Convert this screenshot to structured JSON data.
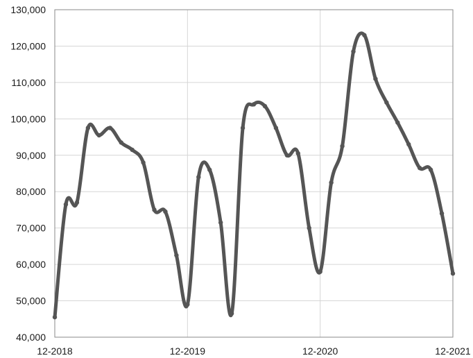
{
  "chart_data": {
    "type": "line",
    "title": "",
    "xlabel": "",
    "ylabel": "",
    "x_tick_labels": [
      "12-2018",
      "12-2019",
      "12-2020",
      "12-2021"
    ],
    "y_tick_labels": [
      "40,000",
      "50,000",
      "60,000",
      "70,000",
      "80,000",
      "90,000",
      "100,000",
      "110,000",
      "120,000",
      "130,000"
    ],
    "y_ticks": [
      40000,
      50000,
      60000,
      70000,
      80000,
      90000,
      100000,
      110000,
      120000,
      130000
    ],
    "ylim": [
      40000,
      130000
    ],
    "x_range": [
      "2018-12",
      "2021-12"
    ],
    "grid": true,
    "line_color": "#555555",
    "series": [
      {
        "name": "",
        "x": [
          "2018-12",
          "2019-01",
          "2019-02",
          "2019-03",
          "2019-04",
          "2019-05",
          "2019-06",
          "2019-07",
          "2019-08",
          "2019-09",
          "2019-10",
          "2019-11",
          "2019-12",
          "2020-01",
          "2020-02",
          "2020-03",
          "2020-04",
          "2020-05",
          "2020-06",
          "2020-07",
          "2020-08",
          "2020-09",
          "2020-10",
          "2020-11",
          "2020-12",
          "2021-01",
          "2021-02",
          "2021-03",
          "2021-04",
          "2021-05",
          "2021-06",
          "2021-07",
          "2021-08",
          "2021-09",
          "2021-10",
          "2021-11",
          "2021-12"
        ],
        "values": [
          45500,
          76500,
          77000,
          97500,
          95500,
          97500,
          93500,
          91500,
          88000,
          75000,
          74500,
          62500,
          49000,
          84000,
          86000,
          71500,
          46500,
          97500,
          104000,
          103500,
          97500,
          90000,
          90500,
          70000,
          58000,
          82500,
          92500,
          118500,
          123000,
          111000,
          104500,
          99000,
          93000,
          86500,
          86000,
          74000,
          57500
        ]
      }
    ]
  }
}
